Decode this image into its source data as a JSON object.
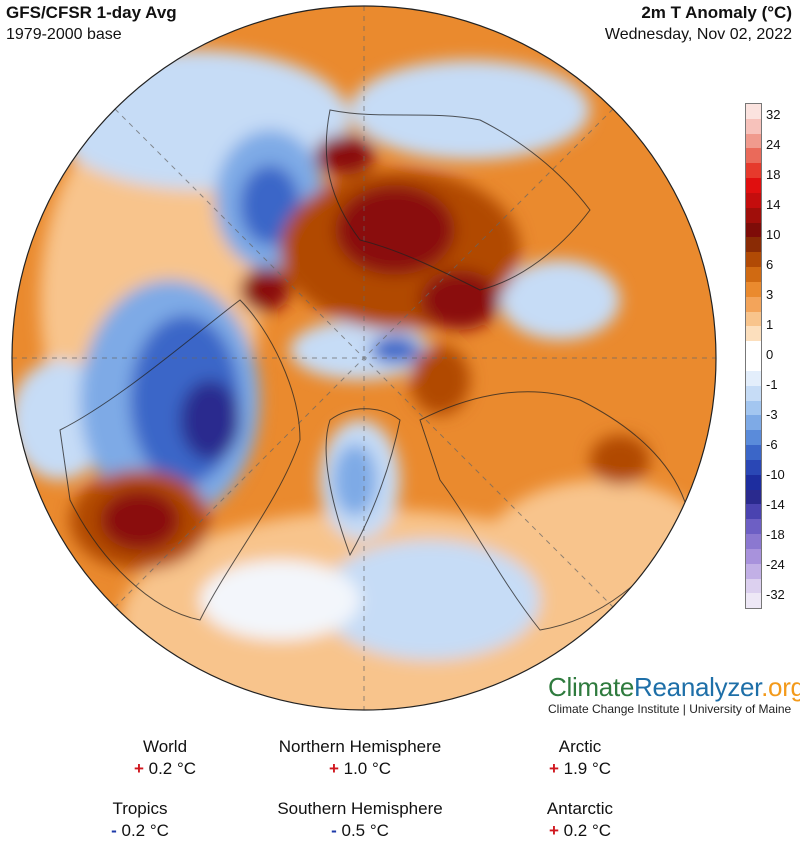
{
  "header": {
    "product": "GFS/CFSR 1-day Avg",
    "baseline": "1979-2000 base",
    "variable": "2m T Anomaly (°C)",
    "date": "Wednesday, Nov 02, 2022"
  },
  "colorbar": {
    "labels": [
      "32",
      "24",
      "18",
      "14",
      "10",
      "6",
      "3",
      "1",
      "0",
      "-1",
      "-3",
      "-6",
      "-10",
      "-14",
      "-18",
      "-24",
      "-32"
    ],
    "colors": [
      "#fbe3df",
      "#f7c2bb",
      "#f09a8d",
      "#ea6a5a",
      "#e63a2c",
      "#e00f0f",
      "#c40d0d",
      "#a00e0a",
      "#7e0c08",
      "#8a2b05",
      "#b14a05",
      "#d06a12",
      "#ea8a2e",
      "#f3a45a",
      "#f8c48c",
      "#fcdfbd",
      "#ffffff",
      "#ffffff",
      "#e3eefb",
      "#c6dcf6",
      "#a3c6f0",
      "#7eaae6",
      "#5a8bda",
      "#3b66c8",
      "#2a47b5",
      "#1d2d9f",
      "#2a2a8e",
      "#4a43b0",
      "#6d5fc4",
      "#8b78d0",
      "#a892dc",
      "#c2b0e6",
      "#dcd0ef",
      "#eee8f6"
    ]
  },
  "brand": {
    "part1": "Climate",
    "part2": "Reanalyzer",
    "part3": ".org",
    "subtitle": "Climate Change Institute | University of Maine"
  },
  "stats": [
    {
      "name": "World",
      "sign": "+",
      "value": "0.2 °C"
    },
    {
      "name": "Northern Hemisphere",
      "sign": "+",
      "value": "1.0 °C"
    },
    {
      "name": "Arctic",
      "sign": "+",
      "value": "1.9 °C"
    },
    {
      "name": "Tropics",
      "sign": "-",
      "value": "0.2 °C"
    },
    {
      "name": "Southern Hemisphere",
      "sign": "-",
      "value": "0.5 °C"
    },
    {
      "name": "Antarctic",
      "sign": "+",
      "value": "0.2 °C"
    }
  ],
  "map_colors": {
    "warm_light": "#f8c48c",
    "warm_mid": "#ea8a2e",
    "warm_strong": "#b14a05",
    "warm_extreme": "#8a0d08",
    "cold_light": "#c6dcf6",
    "cold_mid": "#7eaae6",
    "cold_strong": "#3b66c8",
    "cold_extreme": "#2a2a8e",
    "neutral": "#f3f6fb"
  }
}
